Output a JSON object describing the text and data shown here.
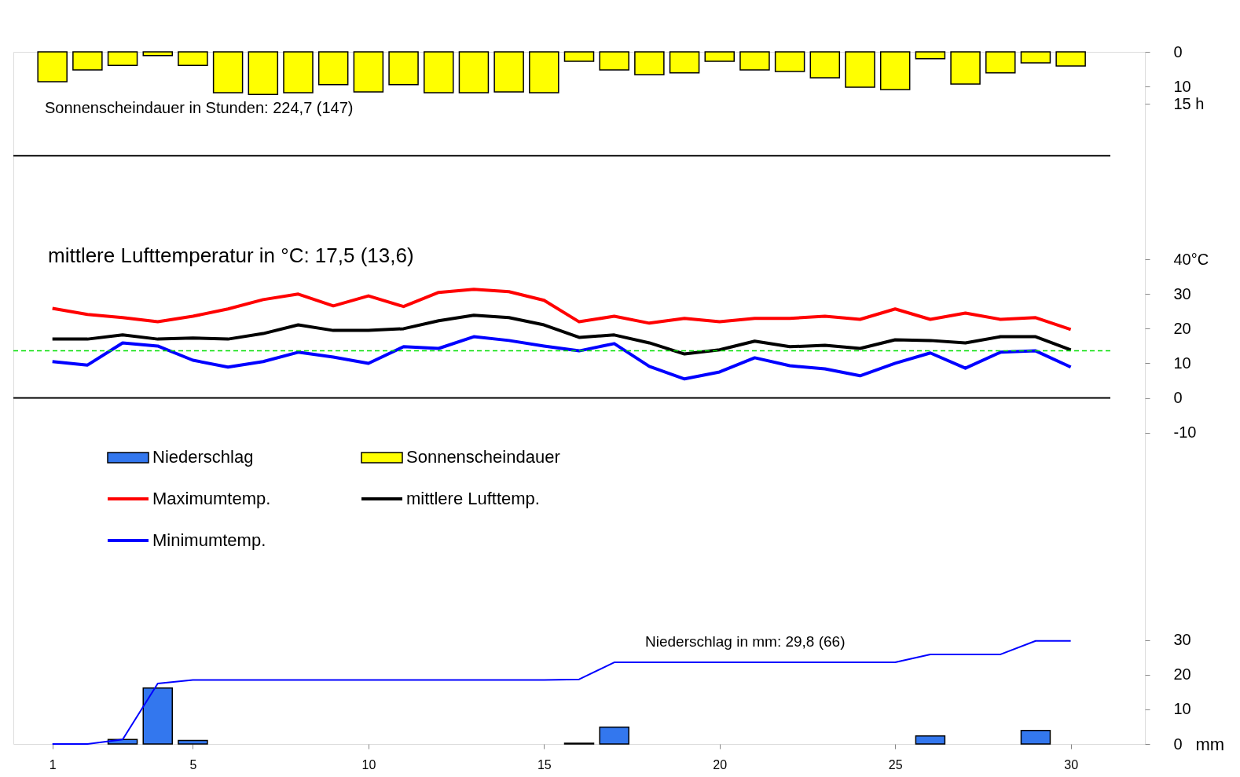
{
  "chart_data": {
    "type": "line",
    "x": [
      1,
      2,
      3,
      4,
      5,
      6,
      7,
      8,
      9,
      10,
      11,
      12,
      13,
      14,
      15,
      16,
      17,
      18,
      19,
      20,
      21,
      22,
      23,
      24,
      25,
      26,
      27,
      28,
      29,
      30
    ],
    "xlim": [
      0,
      32
    ],
    "xticks": [
      1,
      5,
      10,
      15,
      20,
      25,
      30
    ],
    "ylim": [
      -100,
      100
    ],
    "yticks": [
      -10,
      0,
      10,
      20,
      30,
      {
        "value": 40,
        "label": "40°C"
      }
    ],
    "y2lim": [
      200,
      0
    ],
    "y2ticks": [
      0,
      10,
      {
        "value": 15,
        "label": "15 h"
      }
    ],
    "y3lim": [
      0,
      200
    ],
    "y3ticks": [
      0,
      10,
      20,
      30
    ],
    "y3label": "mm",
    "series": [
      {
        "name": "Niederschlag",
        "type": "bar",
        "axis": "y3",
        "color": "#3377ee",
        "values": [
          null,
          null,
          1.3,
          16.2,
          1.0,
          null,
          null,
          null,
          null,
          null,
          null,
          null,
          null,
          null,
          null,
          0.2,
          4.9,
          null,
          null,
          null,
          null,
          null,
          null,
          null,
          null,
          2.3,
          null,
          null,
          3.9,
          null
        ]
      },
      {
        "name": "Sonnenscheindauer",
        "type": "bar",
        "axis": "y2",
        "color": "#ffff00",
        "values": [
          8.6,
          5.2,
          3.9,
          1.1,
          3.9,
          11.8,
          12.3,
          11.8,
          9.5,
          11.6,
          9.5,
          11.8,
          11.8,
          11.6,
          11.8,
          2.7,
          5.2,
          6.6,
          6.1,
          2.7,
          5.2,
          5.7,
          7.5,
          10.2,
          10.9,
          2.0,
          9.3,
          6.1,
          3.2,
          4.1
        ]
      },
      {
        "name": "Maximumtemp.",
        "axis": "y",
        "color": "#ff0000",
        "values": [
          25.9,
          24.1,
          23.2,
          22.0,
          23.6,
          25.7,
          28.4,
          30.0,
          26.6,
          29.5,
          26.4,
          30.5,
          31.4,
          30.7,
          28.2,
          22.0,
          23.6,
          21.6,
          23.0,
          22.0,
          23.0,
          23.0,
          23.6,
          22.7,
          25.7,
          22.7,
          24.5,
          22.7,
          23.2,
          19.8
        ]
      },
      {
        "name": "mittlere Lufttemp.",
        "axis": "y",
        "color": "#000000",
        "values": [
          17.0,
          17.0,
          18.2,
          17.0,
          17.3,
          17.0,
          18.6,
          21.1,
          19.5,
          19.5,
          20.0,
          22.3,
          23.9,
          23.2,
          21.1,
          17.5,
          18.2,
          15.9,
          12.7,
          13.9,
          16.4,
          14.8,
          15.2,
          14.3,
          16.8,
          16.6,
          15.9,
          17.7,
          17.7,
          13.9
        ]
      },
      {
        "name": "Minimumtemp.",
        "axis": "y",
        "color": "#0000ff",
        "values": [
          10.5,
          9.5,
          15.9,
          15.0,
          10.9,
          8.9,
          10.5,
          13.2,
          11.8,
          10.0,
          14.8,
          14.3,
          17.7,
          16.6,
          15.0,
          13.6,
          15.7,
          9.1,
          5.5,
          7.5,
          11.6,
          9.3,
          8.4,
          6.4,
          10.0,
          13.0,
          8.6,
          13.2,
          13.6,
          8.9
        ]
      },
      {
        "axis": "y3",
        "color": "#0000ff",
        "values": [
          0,
          0,
          1.3,
          17.5,
          18.5,
          18.5,
          18.5,
          18.5,
          18.5,
          18.5,
          18.5,
          18.5,
          18.5,
          18.5,
          18.5,
          18.7,
          23.6,
          23.6,
          23.6,
          23.6,
          23.6,
          23.6,
          23.6,
          23.6,
          23.6,
          25.9,
          25.9,
          25.9,
          29.8,
          29.8
        ]
      }
    ],
    "ref_lines": [
      {
        "axis": "y2",
        "value": 30,
        "color": "#000000"
      },
      {
        "axis": "y",
        "value": 0,
        "color": "#000000"
      },
      {
        "axis": "y",
        "value": 13.6,
        "color": "#00dd00",
        "line_style": "dashed"
      }
    ],
    "annotations": [
      "Sonnenscheindauer in Stunden: 224,7 (147)",
      "mittlere Lufttemperatur in °C: 17,5 (13,6)",
      "Niederschlag in mm: 29,8 (66)"
    ],
    "legend": "left",
    "grid": false,
    "marker": "none"
  }
}
